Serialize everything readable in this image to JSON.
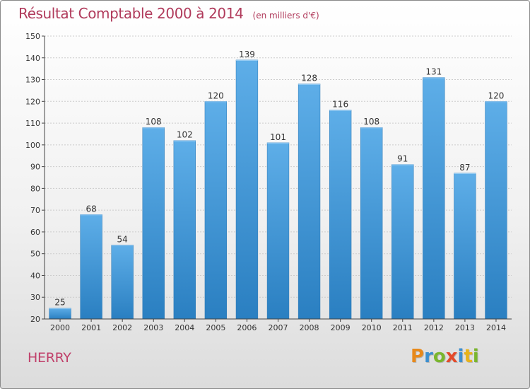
{
  "header": {
    "title": "Résultat Comptable 2000 à 2014",
    "subtitle": "(en milliers d'€)"
  },
  "footer": {
    "commune": "HERRY",
    "brand": "Proxiti",
    "brand_letters": [
      {
        "char": "P",
        "color": "#e8891a"
      },
      {
        "char": "r",
        "color": "#3c8fd0"
      },
      {
        "char": "o",
        "color": "#7ab62e"
      },
      {
        "char": "x",
        "color": "#e34a2a"
      },
      {
        "char": "i",
        "color": "#3c8fd0"
      },
      {
        "char": "t",
        "color": "#e8b31a"
      },
      {
        "char": "i",
        "color": "#7ab62e"
      }
    ]
  },
  "colors": {
    "title": "#b03a5b",
    "bar_top": "#5eaee8",
    "bar_bottom": "#2a7fc1",
    "grid": "#cccccc",
    "axis": "#444444"
  },
  "chart_data": {
    "type": "bar",
    "title": "Résultat Comptable 2000 à 2014",
    "subtitle": "(en milliers d'€)",
    "categories": [
      "2000",
      "2001",
      "2002",
      "2003",
      "2004",
      "2005",
      "2006",
      "2007",
      "2008",
      "2009",
      "2010",
      "2011",
      "2012",
      "2013",
      "2014"
    ],
    "values": [
      25,
      68,
      54,
      108,
      102,
      120,
      139,
      101,
      128,
      116,
      108,
      91,
      131,
      87,
      120
    ],
    "ylim": [
      20,
      150
    ],
    "yticks": [
      20,
      30,
      40,
      50,
      60,
      70,
      80,
      90,
      100,
      110,
      120,
      130,
      140,
      150
    ],
    "grid": true,
    "data_labels": true
  }
}
